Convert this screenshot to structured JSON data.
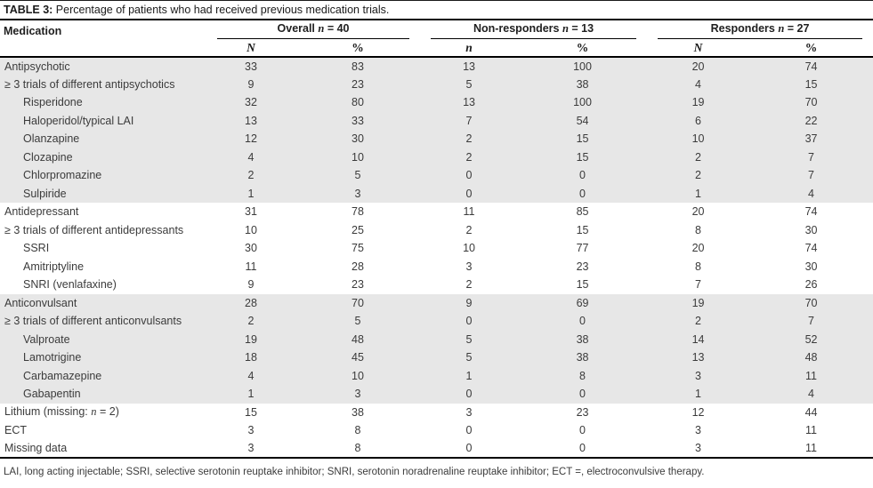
{
  "title": {
    "bold": "TABLE 3:",
    "rest": " Percentage of patients who had received previous medication trials."
  },
  "colors": {
    "band_gray": "#e7e7e7",
    "rule_black": "#000000",
    "body_text": "#3b3b3b"
  },
  "table": {
    "medication_header": "Medication",
    "groups": [
      {
        "prefix": "Overall ",
        "n_symbol": "n",
        "rest": " = 40"
      },
      {
        "prefix": "Non-responders ",
        "n_symbol": "n",
        "rest": " = 13"
      },
      {
        "prefix": "Responders ",
        "n_symbol": "n",
        "rest": " = 27"
      }
    ],
    "subcols": [
      "N",
      "%",
      "n",
      "%",
      "N",
      "%"
    ],
    "rows": [
      {
        "label": "Antipsychotic",
        "indent": false,
        "shaded": true,
        "values": [
          "33",
          "83",
          "13",
          "100",
          "20",
          "74"
        ]
      },
      {
        "label": "≥ 3 trials of different antipsychotics",
        "indent": false,
        "shaded": true,
        "values": [
          "9",
          "23",
          "5",
          "38",
          "4",
          "15"
        ]
      },
      {
        "label": "Risperidone",
        "indent": true,
        "shaded": true,
        "values": [
          "32",
          "80",
          "13",
          "100",
          "19",
          "70"
        ]
      },
      {
        "label": "Haloperidol/typical LAI",
        "indent": true,
        "shaded": true,
        "values": [
          "13",
          "33",
          "7",
          "54",
          "6",
          "22"
        ]
      },
      {
        "label": "Olanzapine",
        "indent": true,
        "shaded": true,
        "values": [
          "12",
          "30",
          "2",
          "15",
          "10",
          "37"
        ]
      },
      {
        "label": "Clozapine",
        "indent": true,
        "shaded": true,
        "values": [
          "4",
          "10",
          "2",
          "15",
          "2",
          "7"
        ]
      },
      {
        "label": "Chlorpromazine",
        "indent": true,
        "shaded": true,
        "values": [
          "2",
          "5",
          "0",
          "0",
          "2",
          "7"
        ]
      },
      {
        "label": "Sulpiride",
        "indent": true,
        "shaded": true,
        "values": [
          "1",
          "3",
          "0",
          "0",
          "1",
          "4"
        ]
      },
      {
        "label": "Antidepressant",
        "indent": false,
        "shaded": false,
        "values": [
          "31",
          "78",
          "11",
          "85",
          "20",
          "74"
        ]
      },
      {
        "label": "≥ 3 trials of different antidepressants",
        "indent": false,
        "shaded": false,
        "values": [
          "10",
          "25",
          "2",
          "15",
          "8",
          "30"
        ]
      },
      {
        "label": "SSRI",
        "indent": true,
        "shaded": false,
        "values": [
          "30",
          "75",
          "10",
          "77",
          "20",
          "74"
        ]
      },
      {
        "label": "Amitriptyline",
        "indent": true,
        "shaded": false,
        "values": [
          "11",
          "28",
          "3",
          "23",
          "8",
          "30"
        ]
      },
      {
        "label": "SNRI (venlafaxine)",
        "indent": true,
        "shaded": false,
        "values": [
          "9",
          "23",
          "2",
          "15",
          "7",
          "26"
        ]
      },
      {
        "label": "Anticonvulsant",
        "indent": false,
        "shaded": true,
        "values": [
          "28",
          "70",
          "9",
          "69",
          "19",
          "70"
        ]
      },
      {
        "label": "≥ 3 trials of different anticonvulsants",
        "indent": false,
        "shaded": true,
        "values": [
          "2",
          "5",
          "0",
          "0",
          "2",
          "7"
        ]
      },
      {
        "label": "Valproate",
        "indent": true,
        "shaded": true,
        "values": [
          "19",
          "48",
          "5",
          "38",
          "14",
          "52"
        ]
      },
      {
        "label": "Lamotrigine",
        "indent": true,
        "shaded": true,
        "values": [
          "18",
          "45",
          "5",
          "38",
          "13",
          "48"
        ]
      },
      {
        "label": "Carbamazepine",
        "indent": true,
        "shaded": true,
        "values": [
          "4",
          "10",
          "1",
          "8",
          "3",
          "11"
        ]
      },
      {
        "label": "Gabapentin",
        "indent": true,
        "shaded": true,
        "values": [
          "1",
          "3",
          "0",
          "0",
          "1",
          "4"
        ]
      },
      {
        "label_em": {
          "pre": "Lithium (missing: ",
          "em": "n",
          "post": " = 2)"
        },
        "indent": false,
        "shaded": false,
        "values": [
          "15",
          "38",
          "3",
          "23",
          "12",
          "44"
        ]
      },
      {
        "label": "ECT",
        "indent": false,
        "shaded": false,
        "values": [
          "3",
          "8",
          "0",
          "0",
          "3",
          "11"
        ]
      },
      {
        "label": "Missing data",
        "indent": false,
        "shaded": false,
        "values": [
          "3",
          "8",
          "0",
          "0",
          "3",
          "11"
        ]
      }
    ]
  },
  "footnote": {
    "text": "LAI, long acting injectable; SSRI, selective serotonin reuptake inhibitor; SNRI, serotonin noradrenaline reuptake inhibitor; ECT =, electroconvulsive therapy."
  }
}
